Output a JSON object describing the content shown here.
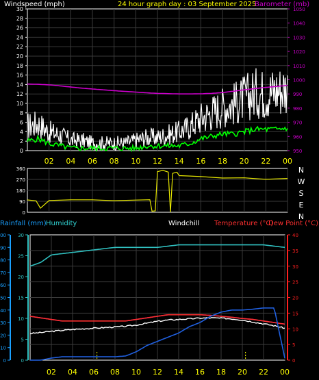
{
  "header": {
    "windspeed_label": "Windspeed (mph)",
    "date_title": "24 hour graph day : 03 September 2025",
    "barometer_label": "Barometer (mb)"
  },
  "lower_header": {
    "rainfall_label": "Rainfall (mm)",
    "humidity_label": "Humidity",
    "windchill_label": "Windchill",
    "temperature_label": "Temperature (°C)",
    "dewpoint_label": "Dew Point (°C)"
  },
  "colors": {
    "windspeed": "#ffffff",
    "gust": "#d0d0d0",
    "wind_avg": "#00ff00",
    "barometer": "#cc00cc",
    "direction": "#e8e800",
    "rainfall": "#2060e0",
    "humidity": "#30c0c0",
    "temperature": "#ff3030",
    "dewpoint": "#ff6060",
    "windchill": "#ffffff",
    "axis_x": "#ffff00",
    "axis_wind": "#ffffff",
    "axis_baro": "#cc00cc",
    "axis_rain": "#1aa0ff",
    "axis_temp": "#ff2020"
  },
  "chart_data": [
    {
      "type": "line",
      "panel": "wind-barometer",
      "x_ticks": [
        "02",
        "04",
        "06",
        "08",
        "10",
        "12",
        "14",
        "16",
        "18",
        "20",
        "22",
        "00"
      ],
      "y_left": {
        "label": "Windspeed (mph)",
        "range": [
          0,
          30
        ],
        "ticks": [
          0,
          2,
          4,
          6,
          8,
          10,
          12,
          14,
          16,
          18,
          20,
          22,
          24,
          26,
          28,
          30
        ]
      },
      "y_right": {
        "label": "Barometer (mb)",
        "range": [
          950,
          1050
        ],
        "ticks": [
          950,
          960,
          970,
          980,
          990,
          1000,
          1010,
          1020,
          1030,
          1040,
          1050
        ]
      },
      "x_hours": [
        0,
        1,
        2,
        3,
        4,
        5,
        6,
        7,
        8,
        9,
        10,
        11,
        12,
        13,
        14,
        15,
        16,
        17,
        18,
        19,
        20,
        21,
        22,
        23,
        24
      ],
      "series": [
        {
          "name": "Windspeed (mph)",
          "axis": "left",
          "values": [
            4,
            4.5,
            3,
            2.5,
            1.5,
            1.5,
            1,
            1,
            1,
            1,
            1.5,
            2,
            2,
            2.5,
            3,
            4,
            5.5,
            6.5,
            7.5,
            8,
            9,
            10,
            10,
            10.5,
            11
          ]
        },
        {
          "name": "Barometer (mb)",
          "axis": "right",
          "values": [
            997,
            996.8,
            996.4,
            995.7,
            994.9,
            994.1,
            993.5,
            992.9,
            992.3,
            991.8,
            991.3,
            990.8,
            990.4,
            990.2,
            990,
            990,
            990.1,
            990.4,
            991,
            991.9,
            992.9,
            993.8,
            994.6,
            995.3,
            996
          ]
        },
        {
          "axis": "left",
          "values": [
            2,
            2.5,
            1.5,
            1,
            0.5,
            0.5,
            0.5,
            0.5,
            0.5,
            0.5,
            0.5,
            1,
            1,
            1,
            1,
            1.5,
            2.5,
            3,
            3.5,
            3.5,
            4,
            4.5,
            4.5,
            4.5,
            4.8
          ]
        }
      ]
    },
    {
      "type": "line",
      "panel": "wind-direction",
      "y_range": [
        0,
        360
      ],
      "y_ticks": [
        0,
        90,
        180,
        270,
        360
      ],
      "compass_labels": [
        "N",
        "W",
        "S",
        "E",
        "N"
      ],
      "x_hours": [
        0,
        0.8,
        1.2,
        2,
        4,
        6,
        8,
        10,
        11.3,
        11.5,
        11.8,
        12,
        12.5,
        13,
        13.2,
        13.4,
        13.8,
        14,
        15,
        16,
        18,
        20,
        22,
        24
      ],
      "series": [
        {
          "values": [
            100,
            90,
            35,
            100,
            105,
            100,
            98,
            102,
            100,
            10,
            10,
            330,
            340,
            330,
            0,
            320,
            330,
            300,
            300,
            290,
            285,
            280,
            275,
            280
          ]
        }
      ]
    },
    {
      "type": "line",
      "panel": "temperature-humidity-rain",
      "x_ticks": [
        "02",
        "04",
        "06",
        "08",
        "10",
        "12",
        "14",
        "16",
        "18",
        "20",
        "22",
        "00"
      ],
      "y_left_outer": {
        "label": "Humidity",
        "range": [
          0,
          100
        ],
        "ticks": [
          0,
          10,
          20,
          30,
          40,
          50,
          60,
          70,
          80,
          90,
          100
        ]
      },
      "y_left_inner": {
        "label": "Rainfall (mm)",
        "range": [
          0,
          30
        ],
        "ticks": [
          0,
          5,
          10,
          15,
          20,
          25,
          30
        ]
      },
      "y_right": {
        "label": "Temperature (°C)",
        "range": [
          0,
          40
        ],
        "ticks": [
          0,
          5,
          10,
          15,
          20,
          25,
          30,
          35,
          40
        ]
      },
      "x_hours": [
        0,
        1,
        2,
        3,
        4,
        5,
        6,
        7,
        8,
        9,
        10,
        11,
        12,
        13,
        14,
        15,
        16,
        17,
        18,
        19,
        20,
        21,
        22,
        23,
        24
      ],
      "series": [
        {
          "name": "Humidity",
          "axis": "left_outer",
          "values": [
            75,
            78,
            84,
            85,
            86,
            87,
            88,
            89,
            90,
            90,
            90,
            90,
            90,
            91,
            92,
            92,
            92,
            92,
            92,
            92,
            92,
            92,
            92,
            91,
            90
          ]
        },
        {
          "name": "Temperature (°C)",
          "axis": "right",
          "values": [
            14,
            13.5,
            13,
            12.5,
            12.5,
            12.5,
            12.5,
            12.5,
            12.5,
            12.5,
            13,
            13.5,
            14,
            14.5,
            14.5,
            14.5,
            14.5,
            14.3,
            14,
            13.7,
            13.3,
            13,
            12.5,
            12,
            11.5
          ]
        },
        {
          "name": "Dew Point (°C)",
          "axis": "right",
          "values": [
            14,
            13.5,
            13,
            12.5,
            12.5,
            12.5,
            12.5,
            12.5,
            12.5,
            12.5,
            13,
            13.5,
            14,
            14.5,
            14.5,
            14.5,
            14.5,
            14.3,
            14,
            13.7,
            13.3,
            13,
            12.5,
            12,
            11.5
          ]
        },
        {
          "name": "Windchill",
          "axis": "right",
          "values": [
            8.5,
            8.8,
            9.2,
            9.5,
            9.8,
            10,
            10.2,
            10.4,
            10.6,
            10.8,
            11.2,
            11.8,
            12.4,
            12.8,
            13,
            13.2,
            13.4,
            13.5,
            13.4,
            13.2,
            12.8,
            12.2,
            11.6,
            11,
            10.2
          ]
        },
        {
          "name": "Rainfall (mm)",
          "axis": "left_inner",
          "values": [
            0,
            0,
            0.5,
            0.8,
            0.8,
            0.8,
            0.8,
            0.8,
            0.8,
            1,
            2,
            3.5,
            4.5,
            5.5,
            6.5,
            8,
            9,
            10.5,
            11.5,
            12,
            12,
            12.2,
            12.5,
            12.5,
            0.5
          ]
        }
      ]
    }
  ]
}
